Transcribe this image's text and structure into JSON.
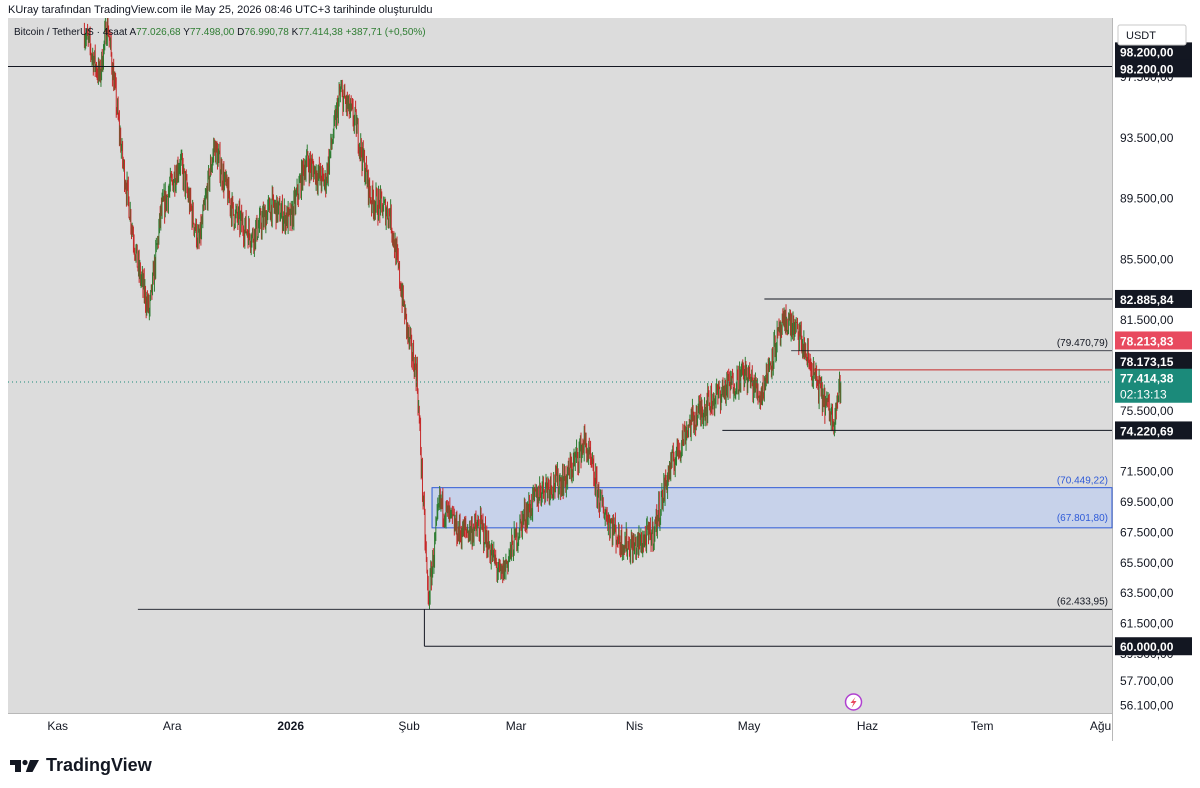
{
  "header": {
    "caption": "KUray tarafından TradingView.com ile May 25, 2026 08:46 UTC+3 tarihinde oluşturuldu"
  },
  "brand": {
    "name": "TradingView"
  },
  "colors": {
    "background": "#dcdcdc",
    "up": "#2e7d32",
    "down": "#c62828",
    "zone_fill": "#c7d2ea",
    "zone_border": "#2f5bd8",
    "zone_label": "#2f5bd8",
    "last_price": "#1b8a7a",
    "red_level": "#e84a5f",
    "line": "#131722"
  },
  "chart_data": {
    "type": "candlestick",
    "symbol_line": {
      "symbol": "Bitcoin / TetherUS · 4saat",
      "open_label": "A",
      "open": "77.026,68",
      "high_label": "Y",
      "high": "77.498,00",
      "low_label": "D",
      "low": "76.990,78",
      "close_label": "K",
      "close": "77.414,38",
      "change": "+387,71 (+0,50%)"
    },
    "currency": "USDT",
    "y_range": [
      55600,
      101400
    ],
    "x_ticks": [
      {
        "label": "Kas",
        "date": "2025-11-01",
        "bold": false
      },
      {
        "label": "Ara",
        "date": "2025-12-01",
        "bold": false
      },
      {
        "label": "2026",
        "date": "2026-01-01",
        "bold": true
      },
      {
        "label": "Şub",
        "date": "2026-02-01",
        "bold": false
      },
      {
        "label": "Mar",
        "date": "2026-03-01",
        "bold": false
      },
      {
        "label": "Nis",
        "date": "2026-04-01",
        "bold": false
      },
      {
        "label": "May",
        "date": "2026-05-01",
        "bold": false
      },
      {
        "label": "Haz",
        "date": "2026-06-01",
        "bold": false
      },
      {
        "label": "Tem",
        "date": "2026-07-01",
        "bold": false
      },
      {
        "label": "Ağu",
        "date": "2026-08-01",
        "bold": false
      }
    ],
    "y_ticks": [
      {
        "value": 97500,
        "label": "97.500,00"
      },
      {
        "value": 93500,
        "label": "93.500,00"
      },
      {
        "value": 89500,
        "label": "89.500,00"
      },
      {
        "value": 85500,
        "label": "85.500,00"
      },
      {
        "value": 81500,
        "label": "81.500,00"
      },
      {
        "value": 75500,
        "label": "75.500,00"
      },
      {
        "value": 71500,
        "label": "71.500,00"
      },
      {
        "value": 69500,
        "label": "69.500,00"
      },
      {
        "value": 67500,
        "label": "67.500,00"
      },
      {
        "value": 65500,
        "label": "65.500,00"
      },
      {
        "value": 63500,
        "label": "63.500,00"
      },
      {
        "value": 61500,
        "label": "61.500,00"
      },
      {
        "value": 59500,
        "label": "59.500,00"
      },
      {
        "value": 57700,
        "label": "57.700,00"
      },
      {
        "value": 56100,
        "label": "56.100,00"
      }
    ],
    "price_path": [
      {
        "date": "2025-11-08",
        "price": 100500
      },
      {
        "date": "2025-11-12",
        "price": 97500
      },
      {
        "date": "2025-11-14",
        "price": 101200
      },
      {
        "date": "2025-11-18",
        "price": 92000
      },
      {
        "date": "2025-11-22",
        "price": 85000
      },
      {
        "date": "2025-11-25",
        "price": 82000
      },
      {
        "date": "2025-11-28",
        "price": 88500
      },
      {
        "date": "2025-12-03",
        "price": 92000
      },
      {
        "date": "2025-12-08",
        "price": 86500
      },
      {
        "date": "2025-12-12",
        "price": 93000
      },
      {
        "date": "2025-12-17",
        "price": 88500
      },
      {
        "date": "2025-12-22",
        "price": 87000
      },
      {
        "date": "2025-12-27",
        "price": 89000
      },
      {
        "date": "2026-01-01",
        "price": 88000
      },
      {
        "date": "2026-01-05",
        "price": 92000
      },
      {
        "date": "2026-01-10",
        "price": 90500
      },
      {
        "date": "2026-01-14",
        "price": 96500
      },
      {
        "date": "2026-01-18",
        "price": 94500
      },
      {
        "date": "2026-01-22",
        "price": 89500
      },
      {
        "date": "2026-01-27",
        "price": 88500
      },
      {
        "date": "2026-02-01",
        "price": 80000
      },
      {
        "date": "2026-02-03",
        "price": 78000
      },
      {
        "date": "2026-02-06",
        "price": 63000
      },
      {
        "date": "2026-02-09",
        "price": 69500
      },
      {
        "date": "2026-02-14",
        "price": 67500
      },
      {
        "date": "2026-02-20",
        "price": 67800
      },
      {
        "date": "2026-02-25",
        "price": 64500
      },
      {
        "date": "2026-03-03",
        "price": 68500
      },
      {
        "date": "2026-03-08",
        "price": 70500
      },
      {
        "date": "2026-03-14",
        "price": 71000
      },
      {
        "date": "2026-03-19",
        "price": 73500
      },
      {
        "date": "2026-03-23",
        "price": 69500
      },
      {
        "date": "2026-03-28",
        "price": 67000
      },
      {
        "date": "2026-04-01",
        "price": 66500
      },
      {
        "date": "2026-04-06",
        "price": 67500
      },
      {
        "date": "2026-04-10",
        "price": 71500
      },
      {
        "date": "2026-04-15",
        "price": 74500
      },
      {
        "date": "2026-04-20",
        "price": 76000
      },
      {
        "date": "2026-04-25",
        "price": 77000
      },
      {
        "date": "2026-04-30",
        "price": 78000
      },
      {
        "date": "2026-05-04",
        "price": 76500
      },
      {
        "date": "2026-05-08",
        "price": 80000
      },
      {
        "date": "2026-05-11",
        "price": 81500
      },
      {
        "date": "2026-05-14",
        "price": 80500
      },
      {
        "date": "2026-05-17",
        "price": 78500
      },
      {
        "date": "2026-05-20",
        "price": 76500
      },
      {
        "date": "2026-05-23",
        "price": 75000
      },
      {
        "date": "2026-05-25",
        "price": 77414
      }
    ],
    "horizontal_levels": [
      {
        "value": 98200,
        "from": "2025-10-01",
        "to": "2026-08-31",
        "axis_label": "98.200,00",
        "style": "black"
      },
      {
        "value": 82885.84,
        "from": "2026-05-05",
        "to": "2026-08-31",
        "axis_label": "82.885,84",
        "style": "black"
      },
      {
        "value": 79470.79,
        "from": "2026-05-12",
        "to": "2026-08-31",
        "text": "(79.470,79)",
        "style": "thin"
      },
      {
        "value": 78213.83,
        "from": "2026-05-18",
        "to": "2026-08-31",
        "axis_label": "78.213,83",
        "style": "red"
      },
      {
        "value": 78173.15,
        "axis_label": "78.173,15",
        "style": "black"
      },
      {
        "value": 74220.69,
        "from": "2026-04-24",
        "to": "2026-08-31",
        "axis_label": "74.220,69",
        "style": "black"
      },
      {
        "value": 62433.95,
        "from": "2025-11-22",
        "to": "2026-08-31",
        "text": "(62.433,95)",
        "style": "thin"
      },
      {
        "value": 60000,
        "from": "2026-02-05",
        "to": "2026-08-31",
        "axis_label": "60.000,00",
        "style": "black"
      }
    ],
    "zone": {
      "top": 70449.22,
      "bottom": 67801.8,
      "from": "2026-02-07",
      "to": "2026-08-31",
      "top_text": "(70.449,22)",
      "bottom_text": "(67.801,80)"
    },
    "last_price": {
      "value": 77414.38,
      "label": "77.414,38",
      "countdown": "02:13:13"
    },
    "current_date": "2026-05-25"
  }
}
